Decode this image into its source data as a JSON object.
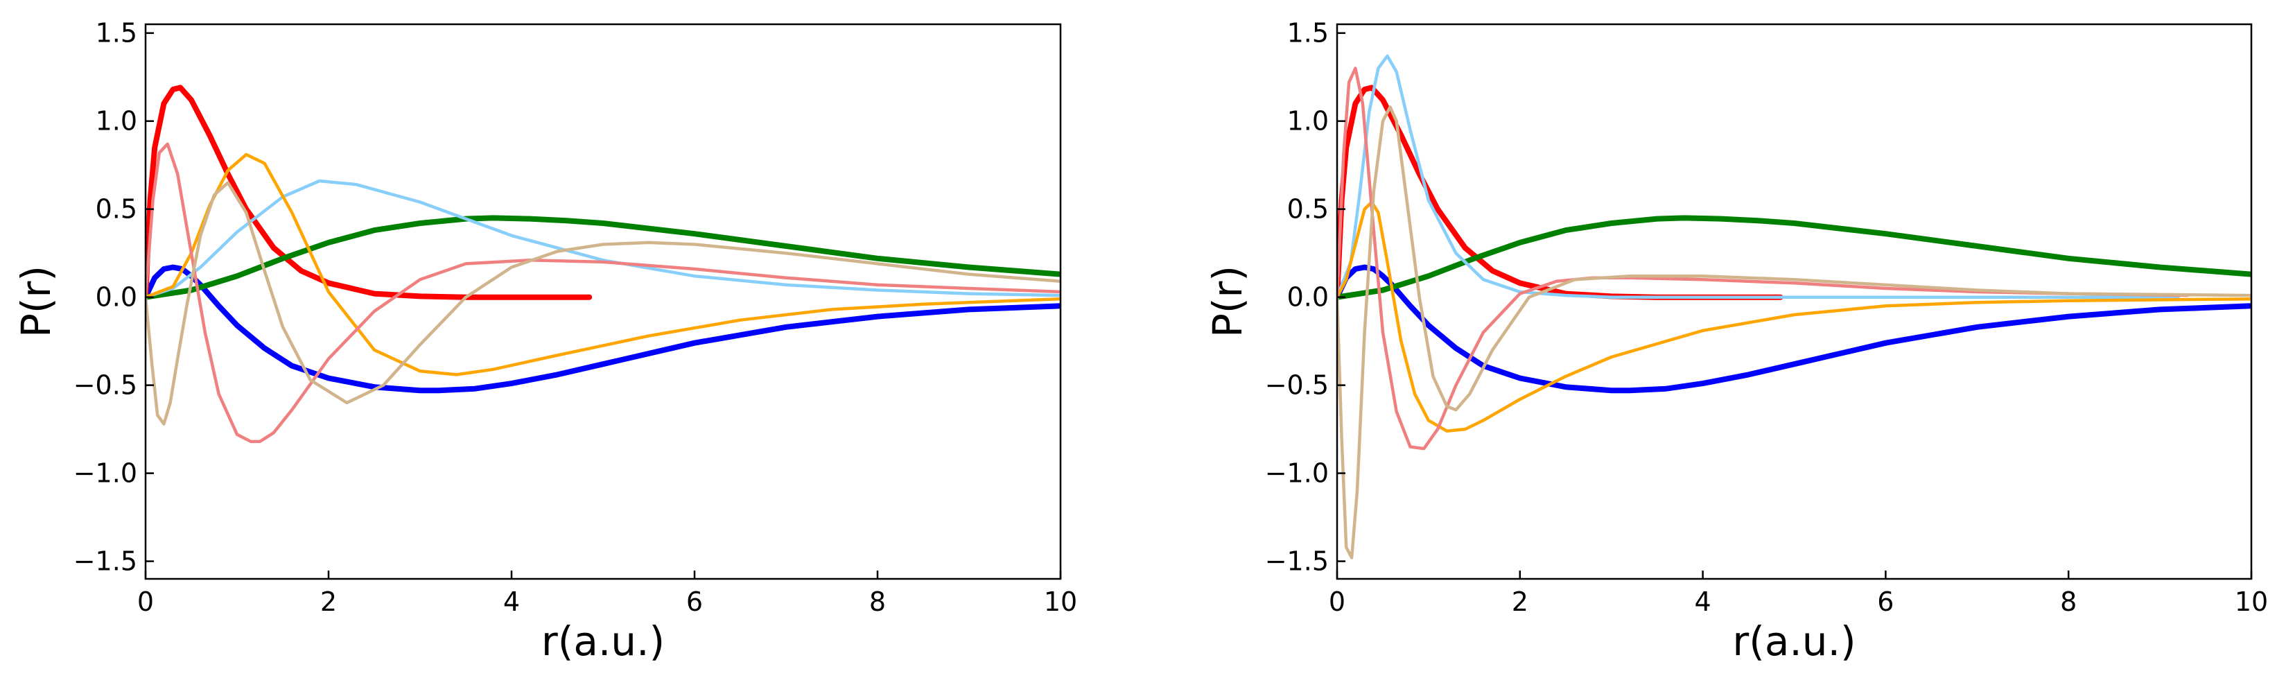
{
  "chart_data": [
    {
      "type": "line",
      "xlabel": "r(a.u.)",
      "ylabel": "P(r)",
      "xlim": [
        0,
        10
      ],
      "ylim": [
        -1.6,
        1.55
      ],
      "xticks": [
        "0",
        "2",
        "4",
        "6",
        "8",
        "10"
      ],
      "yticks": [
        "1.5",
        "1.0",
        "0.5",
        "0.0",
        "−0.5",
        "−1.0",
        "−1.5"
      ],
      "grid": false,
      "legend": "none",
      "series": [
        {
          "color": "#0000ff",
          "thick": true,
          "x": [
            0,
            0.1,
            0.2,
            0.3,
            0.4,
            0.5,
            0.6,
            0.8,
            1.0,
            1.3,
            1.6,
            2.0,
            2.5,
            3.0,
            3.2,
            3.6,
            4.0,
            4.5,
            5,
            6,
            7,
            8,
            9,
            10
          ],
          "y": [
            0,
            0.11,
            0.16,
            0.17,
            0.16,
            0.12,
            0.07,
            -0.05,
            -0.16,
            -0.29,
            -0.39,
            -0.46,
            -0.51,
            -0.53,
            -0.53,
            -0.52,
            -0.49,
            -0.44,
            -0.38,
            -0.26,
            -0.17,
            -0.11,
            -0.07,
            -0.05
          ]
        },
        {
          "color": "#ff0000",
          "thick": true,
          "x": [
            0,
            0.05,
            0.1,
            0.2,
            0.3,
            0.38,
            0.5,
            0.7,
            0.9,
            1.1,
            1.4,
            1.7,
            2.0,
            2.5,
            3.0,
            3.5,
            4.0,
            4.85
          ],
          "y": [
            0,
            0.55,
            0.85,
            1.1,
            1.18,
            1.19,
            1.12,
            0.92,
            0.7,
            0.5,
            0.28,
            0.15,
            0.08,
            0.02,
            0.005,
            0,
            0,
            0
          ]
        },
        {
          "color": "#008000",
          "thick": true,
          "x": [
            0,
            0.5,
            1.0,
            1.5,
            2.0,
            2.5,
            3.0,
            3.5,
            3.8,
            4.2,
            4.6,
            5,
            6,
            7,
            8,
            9,
            10
          ],
          "y": [
            0,
            0.04,
            0.12,
            0.22,
            0.31,
            0.38,
            0.42,
            0.445,
            0.45,
            0.445,
            0.435,
            0.42,
            0.36,
            0.29,
            0.22,
            0.17,
            0.13
          ]
        },
        {
          "color": "#87cefa",
          "thick": false,
          "x": [
            0,
            0.3,
            0.6,
            1.0,
            1.5,
            1.9,
            2.3,
            3.0,
            4.0,
            5.0,
            6.0,
            7.0,
            8.0,
            9.0,
            10
          ],
          "y": [
            0,
            0.05,
            0.17,
            0.37,
            0.57,
            0.66,
            0.64,
            0.54,
            0.35,
            0.21,
            0.12,
            0.07,
            0.04,
            0.02,
            0.01
          ]
        },
        {
          "color": "#ffa500",
          "thick": false,
          "x": [
            0,
            0.3,
            0.5,
            0.7,
            0.9,
            1.1,
            1.3,
            1.6,
            2.0,
            2.5,
            3.0,
            3.4,
            3.8,
            4.5,
            5.5,
            6.5,
            7.5,
            8.5,
            10
          ],
          "y": [
            0,
            0.06,
            0.25,
            0.52,
            0.72,
            0.81,
            0.76,
            0.48,
            0.03,
            -0.3,
            -0.42,
            -0.44,
            -0.41,
            -0.33,
            -0.22,
            -0.13,
            -0.07,
            -0.04,
            -0.01
          ]
        },
        {
          "color": "#f08080",
          "thick": false,
          "x": [
            0,
            0.08,
            0.15,
            0.24,
            0.35,
            0.5,
            0.65,
            0.8,
            1.0,
            1.15,
            1.25,
            1.4,
            1.6,
            2.0,
            2.5,
            3.0,
            3.5,
            4.2,
            5.0,
            6.0,
            7.0,
            8.0,
            9.0,
            10
          ],
          "y": [
            0,
            0.55,
            0.82,
            0.87,
            0.7,
            0.25,
            -0.2,
            -0.55,
            -0.78,
            -0.82,
            -0.82,
            -0.77,
            -0.64,
            -0.35,
            -0.08,
            0.1,
            0.19,
            0.21,
            0.2,
            0.16,
            0.11,
            0.07,
            0.05,
            0.03
          ]
        },
        {
          "color": "#d2b48c",
          "thick": false,
          "x": [
            0,
            0.07,
            0.13,
            0.2,
            0.27,
            0.35,
            0.45,
            0.6,
            0.75,
            0.9,
            1.1,
            1.3,
            1.5,
            1.8,
            2.2,
            2.6,
            3.0,
            3.5,
            4.0,
            4.5,
            5.0,
            5.5,
            6.0,
            7.0,
            8.0,
            9.0,
            10
          ],
          "y": [
            0,
            -0.38,
            -0.67,
            -0.72,
            -0.6,
            -0.35,
            -0.05,
            0.35,
            0.58,
            0.65,
            0.48,
            0.15,
            -0.17,
            -0.47,
            -0.6,
            -0.5,
            -0.27,
            0.0,
            0.17,
            0.26,
            0.3,
            0.31,
            0.3,
            0.25,
            0.19,
            0.13,
            0.09
          ]
        }
      ]
    },
    {
      "type": "line",
      "xlabel": "r(a.u.)",
      "ylabel": "P(r)",
      "xlim": [
        0,
        10
      ],
      "ylim": [
        -1.6,
        1.55
      ],
      "xticks": [
        "0",
        "2",
        "4",
        "6",
        "8",
        "10"
      ],
      "yticks": [
        "1.5",
        "1.0",
        "0.5",
        "0.0",
        "−0.5",
        "−1.0",
        "−1.5"
      ],
      "grid": false,
      "legend": "none",
      "series": [
        {
          "color": "#0000ff",
          "thick": true,
          "x": [
            0,
            0.1,
            0.2,
            0.3,
            0.4,
            0.5,
            0.6,
            0.8,
            1.0,
            1.3,
            1.6,
            2.0,
            2.5,
            3.0,
            3.2,
            3.6,
            4.0,
            4.5,
            5,
            6,
            7,
            8,
            9,
            10
          ],
          "y": [
            0,
            0.11,
            0.16,
            0.17,
            0.16,
            0.12,
            0.07,
            -0.05,
            -0.16,
            -0.29,
            -0.39,
            -0.46,
            -0.51,
            -0.53,
            -0.53,
            -0.52,
            -0.49,
            -0.44,
            -0.38,
            -0.26,
            -0.17,
            -0.11,
            -0.07,
            -0.05
          ]
        },
        {
          "color": "#ff0000",
          "thick": true,
          "x": [
            0,
            0.05,
            0.1,
            0.2,
            0.3,
            0.38,
            0.5,
            0.7,
            0.9,
            1.1,
            1.4,
            1.7,
            2.0,
            2.5,
            3.0,
            3.5,
            4.0,
            4.85
          ],
          "y": [
            0,
            0.55,
            0.85,
            1.1,
            1.18,
            1.19,
            1.12,
            0.92,
            0.7,
            0.5,
            0.28,
            0.15,
            0.08,
            0.02,
            0.005,
            0,
            0,
            0
          ]
        },
        {
          "color": "#008000",
          "thick": true,
          "x": [
            0,
            0.5,
            1.0,
            1.5,
            2.0,
            2.5,
            3.0,
            3.5,
            3.8,
            4.2,
            4.6,
            5,
            6,
            7,
            8,
            9,
            10
          ],
          "y": [
            0,
            0.04,
            0.12,
            0.22,
            0.31,
            0.38,
            0.42,
            0.445,
            0.45,
            0.445,
            0.435,
            0.42,
            0.36,
            0.29,
            0.22,
            0.17,
            0.13
          ]
        },
        {
          "color": "#87cefa",
          "thick": false,
          "x": [
            0,
            0.15,
            0.25,
            0.35,
            0.45,
            0.55,
            0.65,
            0.8,
            1.0,
            1.3,
            1.6,
            2.0,
            2.5,
            3.0,
            4.0,
            5.0,
            7.0,
            9.2
          ],
          "y": [
            0,
            0.2,
            0.6,
            1.05,
            1.3,
            1.37,
            1.28,
            0.95,
            0.55,
            0.25,
            0.1,
            0.03,
            0.01,
            0,
            0,
            0,
            0,
            0
          ]
        },
        {
          "color": "#ffa500",
          "thick": false,
          "x": [
            0,
            0.1,
            0.2,
            0.3,
            0.38,
            0.45,
            0.55,
            0.7,
            0.85,
            1.0,
            1.2,
            1.4,
            1.6,
            2.0,
            2.5,
            3.0,
            4.0,
            5.0,
            6.0,
            7.0,
            8.0,
            10
          ],
          "y": [
            0,
            0.1,
            0.3,
            0.5,
            0.54,
            0.48,
            0.2,
            -0.25,
            -0.55,
            -0.7,
            -0.76,
            -0.75,
            -0.7,
            -0.58,
            -0.45,
            -0.34,
            -0.19,
            -0.1,
            -0.05,
            -0.03,
            -0.02,
            -0.01
          ]
        },
        {
          "color": "#f08080",
          "thick": false,
          "x": [
            0,
            0.07,
            0.13,
            0.2,
            0.28,
            0.38,
            0.5,
            0.65,
            0.8,
            0.95,
            1.1,
            1.3,
            1.6,
            2.0,
            2.4,
            2.8,
            3.2,
            4.0,
            5.0,
            6.0,
            7.0,
            8.0,
            9.3
          ],
          "y": [
            0,
            0.8,
            1.22,
            1.3,
            1.1,
            0.5,
            -0.2,
            -0.65,
            -0.85,
            -0.86,
            -0.75,
            -0.5,
            -0.2,
            0.02,
            0.09,
            0.11,
            0.11,
            0.1,
            0.08,
            0.05,
            0.03,
            0.02,
            0.01
          ]
        },
        {
          "color": "#d2b48c",
          "thick": false,
          "x": [
            0,
            0.05,
            0.1,
            0.16,
            0.22,
            0.3,
            0.4,
            0.5,
            0.58,
            0.65,
            0.75,
            0.9,
            1.05,
            1.2,
            1.3,
            1.45,
            1.7,
            2.1,
            2.6,
            3.2,
            4.0,
            5.0,
            6.0,
            7.0,
            8.0,
            10
          ],
          "y": [
            0,
            -0.8,
            -1.42,
            -1.48,
            -1.1,
            -0.2,
            0.6,
            1.0,
            1.08,
            1.0,
            0.6,
            0.0,
            -0.45,
            -0.62,
            -0.64,
            -0.55,
            -0.3,
            0.0,
            0.1,
            0.12,
            0.12,
            0.1,
            0.07,
            0.04,
            0.02,
            0.01
          ]
        }
      ]
    }
  ]
}
